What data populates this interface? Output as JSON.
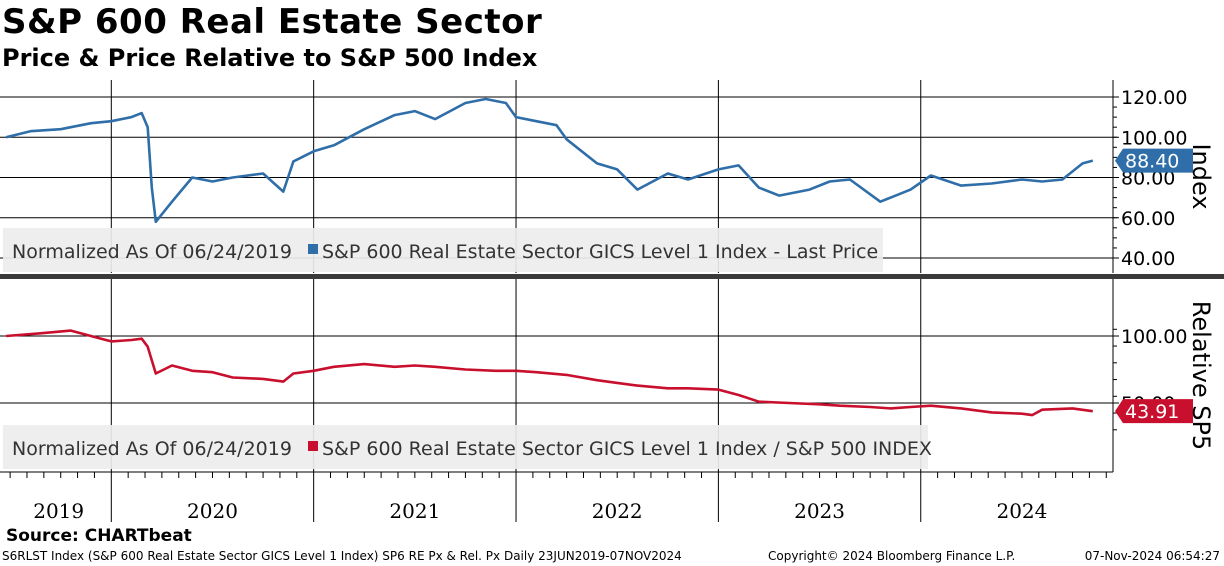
{
  "header": {
    "title": "S&P 600 Real Estate Sector",
    "subtitle": "Price & Price Relative to S&P 500 Index"
  },
  "colors": {
    "price": "#2f6ea8",
    "relative": "#c8102e",
    "grid": "#000000"
  },
  "chart_data": [
    {
      "type": "line",
      "panel": "top",
      "ylabel": "Index",
      "ylim": [
        40,
        122
      ],
      "yticks": [
        "120.00",
        "100.00",
        "80.00",
        "60.00",
        "40.00"
      ],
      "ytick_values": [
        120,
        100,
        80,
        60,
        40
      ],
      "legend_note": "Normalized As Of 06/24/2019",
      "series": [
        {
          "name": "S&P 600 Real Estate Sector GICS Level 1 Index - Last Price",
          "last_value_label": "88.40",
          "x": [
            2019.48,
            2019.6,
            2019.75,
            2019.9,
            2020.0,
            2020.1,
            2020.15,
            2020.18,
            2020.2,
            2020.22,
            2020.3,
            2020.4,
            2020.5,
            2020.6,
            2020.75,
            2020.85,
            2020.9,
            2021.0,
            2021.1,
            2021.25,
            2021.4,
            2021.5,
            2021.6,
            2021.75,
            2021.85,
            2021.95,
            2022.0,
            2022.1,
            2022.2,
            2022.25,
            2022.4,
            2022.5,
            2022.6,
            2022.75,
            2022.85,
            2023.0,
            2023.1,
            2023.2,
            2023.3,
            2023.45,
            2023.55,
            2023.65,
            2023.8,
            2023.95,
            2024.05,
            2024.2,
            2024.35,
            2024.5,
            2024.6,
            2024.7,
            2024.8,
            2024.85
          ],
          "values": [
            100,
            103,
            104,
            107,
            108,
            110,
            112,
            105,
            75,
            58,
            68,
            80,
            78,
            80,
            82,
            73,
            88,
            93,
            96,
            104,
            111,
            113,
            109,
            117,
            119,
            117,
            110,
            108,
            106,
            99,
            87,
            84,
            74,
            82,
            79,
            84,
            86,
            75,
            71,
            74,
            78,
            79,
            68,
            74,
            81,
            76,
            77,
            79,
            78,
            79,
            87,
            88.4
          ]
        }
      ]
    },
    {
      "type": "line",
      "panel": "bottom",
      "ylabel": "Relative SP5",
      "ylim": [
        30,
        108
      ],
      "yticks": [
        "100.00",
        "50.00"
      ],
      "ytick_values": [
        100,
        50
      ],
      "legend_note": "Normalized As Of 06/24/2019",
      "series": [
        {
          "name": "S&P 600 Real Estate Sector GICS Level 1 Index / S&P 500 INDEX",
          "last_value_label": "43.91",
          "x": [
            2019.48,
            2019.65,
            2019.8,
            2019.95,
            2020.0,
            2020.1,
            2020.15,
            2020.18,
            2020.22,
            2020.3,
            2020.4,
            2020.5,
            2020.6,
            2020.75,
            2020.85,
            2020.9,
            2021.0,
            2021.1,
            2021.25,
            2021.4,
            2021.5,
            2021.6,
            2021.75,
            2021.9,
            2022.0,
            2022.1,
            2022.25,
            2022.4,
            2022.5,
            2022.6,
            2022.75,
            2022.85,
            2023.0,
            2023.1,
            2023.2,
            2023.35,
            2023.5,
            2023.6,
            2023.75,
            2023.85,
            2023.95,
            2024.05,
            2024.2,
            2024.35,
            2024.5,
            2024.55,
            2024.6,
            2024.75,
            2024.85
          ],
          "values": [
            100,
            102,
            104,
            98,
            96,
            97,
            98,
            92,
            72,
            78,
            74,
            73,
            69,
            68,
            66,
            72,
            74,
            77,
            79,
            77,
            78,
            77,
            75,
            74,
            74,
            73,
            71,
            67,
            65,
            63,
            61,
            61,
            60,
            56,
            51,
            50,
            49,
            48,
            47,
            46,
            47,
            48,
            46,
            43,
            42,
            41,
            45,
            46,
            43.91
          ]
        }
      ]
    }
  ],
  "x_axis": {
    "domain": [
      2019.45,
      2024.95
    ],
    "labels": [
      "2019",
      "2020",
      "2021",
      "2022",
      "2023",
      "2024"
    ],
    "label_x": [
      2019.74,
      2020.5,
      2021.5,
      2022.5,
      2023.5,
      2024.5
    ],
    "year_boundaries": [
      2020.0,
      2021.0,
      2022.0,
      2023.0,
      2024.0
    ]
  },
  "footer": {
    "source": "Source: CHARTbeat",
    "description": "S6RLST Index (S&P 600 Real Estate Sector GICS Level 1 Index) SP6 RE Px & Rel. Px  Daily 23JUN2019-07NOV2024",
    "copyright": "Copyright© 2024 Bloomberg Finance L.P.",
    "timestamp": "07-Nov-2024 06:54:27"
  }
}
